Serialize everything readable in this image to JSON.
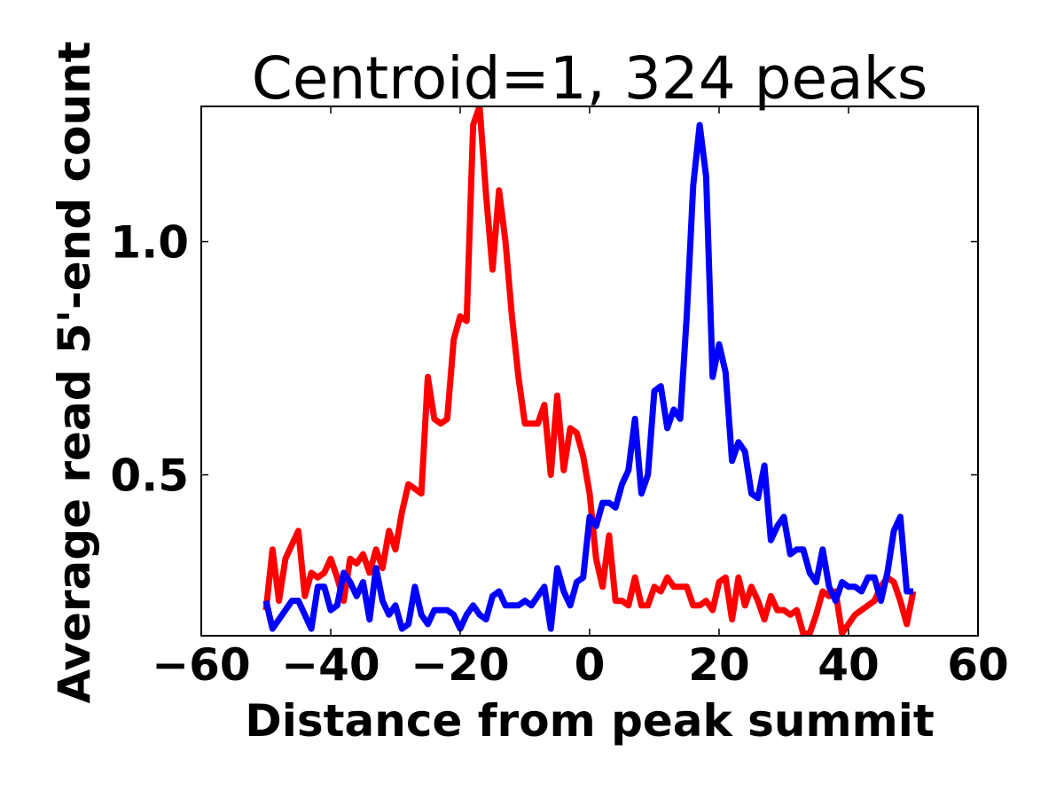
{
  "chart_data": {
    "type": "line",
    "title": "Centroid=1, 324 peaks",
    "xlabel": "Distance from peak summit",
    "ylabel": "Average read 5'-end count",
    "xlim": [
      -60,
      60
    ],
    "ylim": [
      0.155,
      1.29
    ],
    "xticks": [
      -60,
      -40,
      -20,
      0,
      20,
      40,
      60
    ],
    "xtick_labels": [
      "−60",
      "−40",
      "−20",
      "0",
      "20",
      "40",
      "60"
    ],
    "yticks": [
      0.5,
      1.0
    ],
    "ytick_labels": [
      "0.5",
      "1.0"
    ],
    "grid": false,
    "x": [
      -50,
      -49,
      -48,
      -47,
      -46,
      -45,
      -44,
      -43,
      -42,
      -41,
      -40,
      -39,
      -38,
      -37,
      -36,
      -35,
      -34,
      -33,
      -32,
      -31,
      -30,
      -29,
      -28,
      -27,
      -26,
      -25,
      -24,
      -23,
      -22,
      -21,
      -20,
      -19,
      -18,
      -17,
      -16,
      -15,
      -14,
      -13,
      -12,
      -11,
      -10,
      -9,
      -8,
      -7,
      -6,
      -5,
      -4,
      -3,
      -2,
      -1,
      0,
      1,
      2,
      3,
      4,
      5,
      6,
      7,
      8,
      9,
      10,
      11,
      12,
      13,
      14,
      15,
      16,
      17,
      18,
      19,
      20,
      21,
      22,
      23,
      24,
      25,
      26,
      27,
      28,
      29,
      30,
      31,
      32,
      33,
      34,
      35,
      36,
      37,
      38,
      39,
      40,
      41,
      42,
      43,
      44,
      45,
      46,
      47,
      48,
      49,
      50
    ],
    "series": [
      {
        "color": "#ff0000",
        "values": [
          0.21,
          0.34,
          0.23,
          0.32,
          0.35,
          0.38,
          0.24,
          0.29,
          0.28,
          0.29,
          0.32,
          0.28,
          0.23,
          0.32,
          0.31,
          0.33,
          0.29,
          0.34,
          0.3,
          0.38,
          0.34,
          0.42,
          0.48,
          0.47,
          0.46,
          0.71,
          0.62,
          0.61,
          0.62,
          0.79,
          0.84,
          0.83,
          1.25,
          1.29,
          1.1,
          0.94,
          1.11,
          1.0,
          0.84,
          0.71,
          0.61,
          0.61,
          0.61,
          0.65,
          0.5,
          0.67,
          0.51,
          0.6,
          0.59,
          0.54,
          0.46,
          0.32,
          0.26,
          0.37,
          0.23,
          0.23,
          0.22,
          0.28,
          0.22,
          0.22,
          0.26,
          0.25,
          0.28,
          0.26,
          0.26,
          0.26,
          0.22,
          0.22,
          0.23,
          0.21,
          0.27,
          0.28,
          0.19,
          0.28,
          0.22,
          0.26,
          0.23,
          0.19,
          0.24,
          0.21,
          0.21,
          0.2,
          0.21,
          0.16,
          0.16,
          0.2,
          0.25,
          0.24,
          0.25,
          0.16,
          0.18,
          0.2,
          0.21,
          0.22,
          0.23,
          0.26,
          0.28,
          0.27,
          0.23,
          0.18,
          0.25
        ],
        "width": 7
      },
      {
        "color": "#0000ff",
        "values": [
          0.23,
          0.17,
          0.19,
          0.21,
          0.23,
          0.23,
          0.2,
          0.17,
          0.26,
          0.26,
          0.21,
          0.22,
          0.29,
          0.27,
          0.24,
          0.27,
          0.19,
          0.3,
          0.23,
          0.2,
          0.22,
          0.17,
          0.18,
          0.26,
          0.2,
          0.18,
          0.21,
          0.21,
          0.21,
          0.2,
          0.17,
          0.2,
          0.22,
          0.2,
          0.19,
          0.24,
          0.25,
          0.22,
          0.22,
          0.22,
          0.23,
          0.22,
          0.24,
          0.26,
          0.17,
          0.3,
          0.25,
          0.22,
          0.27,
          0.28,
          0.41,
          0.39,
          0.44,
          0.44,
          0.43,
          0.48,
          0.51,
          0.62,
          0.46,
          0.5,
          0.68,
          0.69,
          0.6,
          0.64,
          0.62,
          0.84,
          1.12,
          1.25,
          1.14,
          0.71,
          0.78,
          0.72,
          0.53,
          0.57,
          0.55,
          0.46,
          0.45,
          0.52,
          0.36,
          0.39,
          0.41,
          0.33,
          0.34,
          0.34,
          0.29,
          0.27,
          0.34,
          0.26,
          0.23,
          0.27,
          0.26,
          0.26,
          0.25,
          0.28,
          0.28,
          0.23,
          0.29,
          0.38,
          0.41,
          0.25,
          0.25
        ],
        "width": 7
      }
    ]
  }
}
